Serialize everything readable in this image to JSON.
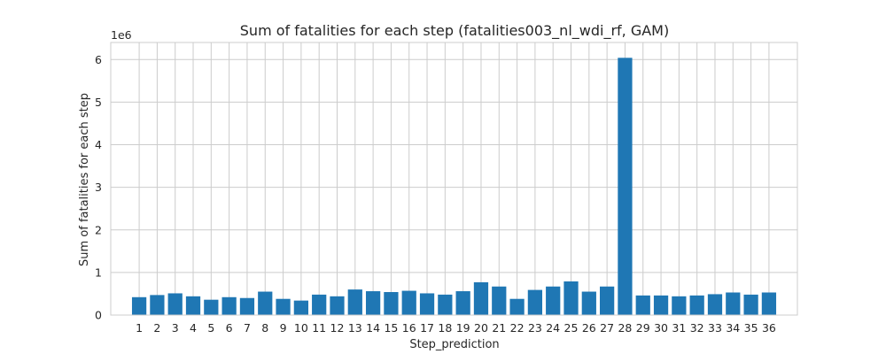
{
  "chart_data": {
    "type": "bar",
    "title": "Sum of fatalities for each step (fatalities003_nl_wdi_rf, GAM)",
    "xlabel": "Step_prediction",
    "ylabel": "Sum of fatalities for each step",
    "y_offset_label": "1e6",
    "ylim": [
      0,
      6400000
    ],
    "y_ticks": [
      0,
      1000000,
      2000000,
      3000000,
      4000000,
      5000000,
      6000000
    ],
    "y_tick_labels": [
      "0",
      "1",
      "2",
      "3",
      "4",
      "5",
      "6"
    ],
    "grid": true,
    "bar_color": "#1f77b4",
    "categories": [
      "1",
      "2",
      "3",
      "4",
      "5",
      "6",
      "7",
      "8",
      "9",
      "10",
      "11",
      "12",
      "13",
      "14",
      "15",
      "16",
      "17",
      "18",
      "19",
      "20",
      "21",
      "22",
      "23",
      "24",
      "25",
      "26",
      "27",
      "28",
      "29",
      "30",
      "31",
      "32",
      "33",
      "34",
      "35",
      "36"
    ],
    "values": [
      420000,
      470000,
      510000,
      440000,
      360000,
      420000,
      400000,
      550000,
      380000,
      340000,
      480000,
      440000,
      600000,
      560000,
      540000,
      570000,
      510000,
      480000,
      560000,
      770000,
      670000,
      380000,
      590000,
      670000,
      790000,
      550000,
      670000,
      6040000,
      460000,
      460000,
      440000,
      460000,
      490000,
      530000,
      480000,
      530000
    ]
  }
}
